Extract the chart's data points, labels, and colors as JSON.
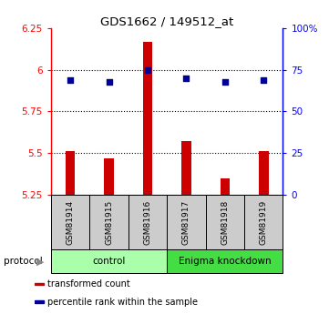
{
  "title": "GDS1662 / 149512_at",
  "samples": [
    "GSM81914",
    "GSM81915",
    "GSM81916",
    "GSM81917",
    "GSM81918",
    "GSM81919"
  ],
  "bar_values": [
    5.51,
    5.47,
    6.17,
    5.57,
    5.35,
    5.51
  ],
  "percentile_values": [
    69,
    68,
    75,
    70,
    68,
    69
  ],
  "bar_base": 5.25,
  "ylim_left": [
    5.25,
    6.25
  ],
  "ylim_right": [
    0,
    100
  ],
  "yticks_left": [
    5.25,
    5.5,
    5.75,
    6.0,
    6.25
  ],
  "yticks_right": [
    0,
    25,
    50,
    75,
    100
  ],
  "ytick_labels_left": [
    "5.25",
    "5.5",
    "5.75",
    "6",
    "6.25"
  ],
  "ytick_labels_right": [
    "0",
    "25",
    "50",
    "75",
    "100%"
  ],
  "dotted_lines": [
    5.5,
    5.75,
    6.0
  ],
  "bar_color": "#cc0000",
  "dot_color": "#000099",
  "protocol_groups": [
    {
      "label": "control",
      "indices": [
        0,
        1,
        2
      ],
      "color": "#aaffaa"
    },
    {
      "label": "Enigma knockdown",
      "indices": [
        3,
        4,
        5
      ],
      "color": "#44dd44"
    }
  ],
  "legend_items": [
    {
      "label": "transformed count",
      "color": "#cc0000"
    },
    {
      "label": "percentile rank within the sample",
      "color": "#000099"
    }
  ],
  "sample_box_color": "#cccccc",
  "background_color": "#ffffff"
}
